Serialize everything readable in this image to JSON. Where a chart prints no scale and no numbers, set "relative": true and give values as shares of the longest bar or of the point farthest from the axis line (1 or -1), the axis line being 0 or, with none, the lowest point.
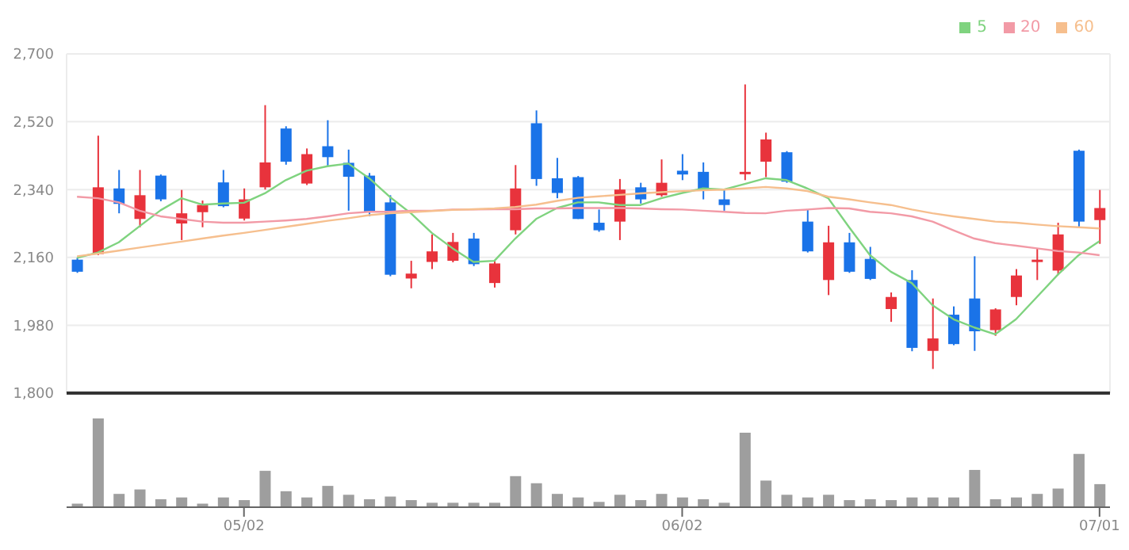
{
  "chart_data": [
    {
      "type": "candlestick",
      "categories": [
        null,
        null,
        null,
        null,
        null,
        null,
        null,
        null,
        null,
        null,
        null,
        null,
        null,
        null,
        null,
        null,
        null,
        null,
        null,
        null,
        null,
        null,
        null,
        null,
        null,
        null,
        null,
        null,
        null,
        null,
        null,
        null,
        null,
        null,
        null,
        null,
        null,
        null,
        null,
        null,
        null,
        null,
        null,
        null,
        null,
        null,
        null,
        null,
        null,
        null
      ],
      "ohlc": [
        [
          2154,
          2159,
          2119,
          2122
        ],
        [
          2169,
          2483,
          2166,
          2346
        ],
        [
          2343,
          2392,
          2277,
          2302
        ],
        [
          2262,
          2392,
          2240,
          2325
        ],
        [
          2377,
          2380,
          2309,
          2314
        ],
        [
          2250,
          2339,
          2206,
          2277
        ],
        [
          2280,
          2311,
          2240,
          2299
        ],
        [
          2359,
          2392,
          2293,
          2296
        ],
        [
          2263,
          2343,
          2258,
          2314
        ],
        [
          2346,
          2564,
          2340,
          2412
        ],
        [
          2502,
          2508,
          2406,
          2414
        ],
        [
          2356,
          2449,
          2352,
          2434
        ],
        [
          2455,
          2524,
          2402,
          2426
        ],
        [
          2411,
          2446,
          2284,
          2374
        ],
        [
          2377,
          2384,
          2269,
          2280
        ],
        [
          2306,
          2325,
          2110,
          2114
        ],
        [
          2104,
          2151,
          2078,
          2117
        ],
        [
          2148,
          2221,
          2129,
          2176
        ],
        [
          2151,
          2225,
          2147,
          2201
        ],
        [
          2210,
          2225,
          2137,
          2142
        ],
        [
          2092,
          2151,
          2080,
          2144
        ],
        [
          2232,
          2405,
          2221,
          2343
        ],
        [
          2516,
          2550,
          2350,
          2368
        ],
        [
          2370,
          2424,
          2317,
          2331
        ],
        [
          2373,
          2376,
          2262,
          2262
        ],
        [
          2252,
          2287,
          2228,
          2232
        ],
        [
          2255,
          2368,
          2206,
          2340
        ],
        [
          2346,
          2358,
          2303,
          2314
        ],
        [
          2325,
          2420,
          2321,
          2358
        ],
        [
          2390,
          2434,
          2365,
          2380
        ],
        [
          2387,
          2412,
          2314,
          2339
        ],
        [
          2314,
          2339,
          2284,
          2299
        ],
        [
          2383,
          2619,
          2365,
          2387
        ],
        [
          2414,
          2491,
          2373,
          2473
        ],
        [
          2439,
          2442,
          2358,
          2361
        ],
        [
          2255,
          2287,
          2173,
          2176
        ],
        [
          2100,
          2244,
          2060,
          2200
        ],
        [
          2200,
          2225,
          2119,
          2122
        ],
        [
          2156,
          2188,
          2100,
          2103
        ],
        [
          2023,
          2067,
          1989,
          2055
        ],
        [
          2100,
          2126,
          1911,
          1920
        ],
        [
          1912,
          2051,
          1864,
          1945
        ],
        [
          2008,
          2030,
          1927,
          1930
        ],
        [
          2051,
          2163,
          1912,
          1964
        ],
        [
          1967,
          2025,
          1952,
          2022
        ],
        [
          2055,
          2129,
          2033,
          2112
        ],
        [
          2148,
          2184,
          2100,
          2154
        ],
        [
          2125,
          2252,
          2113,
          2221
        ],
        [
          2443,
          2446,
          2240,
          2255
        ],
        [
          2259,
          2339,
          2196,
          2291
        ]
      ],
      "colors": [
        "#1a73e8",
        "#e8333c",
        "#1a73e8",
        "#e8333c",
        "#1a73e8",
        "#e8333c",
        "#e8333c",
        "#1a73e8",
        "#e8333c",
        "#e8333c",
        "#1a73e8",
        "#e8333c",
        "#1a73e8",
        "#1a73e8",
        "#1a73e8",
        "#1a73e8",
        "#e8333c",
        "#e8333c",
        "#e8333c",
        "#1a73e8",
        "#e8333c",
        "#e8333c",
        "#1a73e8",
        "#1a73e8",
        "#1a73e8",
        "#1a73e8",
        "#e8333c",
        "#1a73e8",
        "#e8333c",
        "#1a73e8",
        "#1a73e8",
        "#1a73e8",
        "#e8333c",
        "#e8333c",
        "#1a73e8",
        "#1a73e8",
        "#e8333c",
        "#1a73e8",
        "#1a73e8",
        "#e8333c",
        "#1a73e8",
        "#e8333c",
        "#1a73e8",
        "#1a73e8",
        "#e8333c",
        "#e8333c",
        "#e8333c",
        "#e8333c",
        "#1a73e8",
        "#e8333c"
      ],
      "series": [
        {
          "name": "5",
          "type": "line",
          "color": "#7fd37f",
          "values": [
            2159,
            2173,
            2200,
            2243,
            2285,
            2317,
            2300,
            2303,
            2305,
            2330,
            2365,
            2390,
            2402,
            2409,
            2370,
            2320,
            2277,
            2225,
            2184,
            2148,
            2151,
            2210,
            2262,
            2291,
            2306,
            2306,
            2299,
            2299,
            2317,
            2331,
            2343,
            2340,
            2355,
            2370,
            2365,
            2343,
            2317,
            2240,
            2166,
            2122,
            2092,
            2033,
            1996,
            1974,
            1956,
            1996,
            2055,
            2114,
            2166,
            2203
          ]
        },
        {
          "name": "20",
          "type": "line",
          "color": "#f29aa6",
          "values": [
            2321,
            2317,
            2306,
            2284,
            2269,
            2262,
            2255,
            2252,
            2252,
            2255,
            2258,
            2262,
            2269,
            2277,
            2281,
            2281,
            2284,
            2284,
            2287,
            2287,
            2288,
            2288,
            2290,
            2290,
            2291,
            2291,
            2291,
            2290,
            2288,
            2287,
            2284,
            2281,
            2278,
            2277,
            2284,
            2287,
            2291,
            2290,
            2281,
            2277,
            2269,
            2255,
            2232,
            2210,
            2198,
            2191,
            2184,
            2177,
            2173,
            2166
          ]
        },
        {
          "name": "60",
          "type": "line",
          "color": "#f6bf8e",
          "values": [
            2163,
            2170,
            2178,
            2186,
            2194,
            2202,
            2210,
            2218,
            2225,
            2233,
            2241,
            2249,
            2257,
            2264,
            2272,
            2277,
            2280,
            2283,
            2286,
            2288,
            2290,
            2294,
            2300,
            2310,
            2318,
            2322,
            2326,
            2330,
            2333,
            2336,
            2338,
            2340,
            2343,
            2347,
            2343,
            2336,
            2321,
            2314,
            2306,
            2299,
            2287,
            2277,
            2269,
            2262,
            2255,
            2252,
            2247,
            2243,
            2240,
            2237
          ]
        }
      ],
      "ylim": [
        1800,
        2700
      ],
      "yticks": [
        {
          "value": 1800,
          "label": "1,800"
        },
        {
          "value": 1980,
          "label": "1,980"
        },
        {
          "value": 2160,
          "label": "2,160"
        },
        {
          "value": 2340,
          "label": "2,340"
        },
        {
          "value": 2520,
          "label": "2,520"
        },
        {
          "value": 2700,
          "label": "2,700"
        }
      ],
      "grid": true,
      "legend": "top right",
      "marker": "none",
      "tick_labels": "y"
    },
    {
      "type": "bar",
      "relative": true,
      "categories": [
        null,
        null,
        null,
        null,
        null,
        null,
        null,
        null,
        "05/02",
        null,
        null,
        null,
        null,
        null,
        null,
        null,
        null,
        null,
        null,
        null,
        null,
        null,
        null,
        null,
        null,
        null,
        null,
        null,
        null,
        "06/02",
        null,
        null,
        null,
        null,
        null,
        null,
        null,
        null,
        null,
        null,
        null,
        null,
        null,
        null,
        null,
        null,
        null,
        null,
        null,
        "07/01"
      ],
      "color": "#9e9e9e",
      "values": [
        0.04,
        1,
        0.15,
        0.2,
        0.09,
        0.11,
        0.04,
        0.11,
        0.08,
        0.41,
        0.18,
        0.11,
        0.24,
        0.14,
        0.09,
        0.12,
        0.08,
        0.05,
        0.05,
        0.05,
        0.05,
        0.35,
        0.27,
        0.15,
        0.11,
        0.06,
        0.14,
        0.08,
        0.15,
        0.11,
        0.09,
        0.05,
        0.84,
        0.3,
        0.14,
        0.11,
        0.14,
        0.08,
        0.09,
        0.08,
        0.11,
        0.11,
        0.11,
        0.42,
        0.09,
        0.11,
        0.15,
        0.21,
        0.6,
        0.26
      ]
    }
  ]
}
